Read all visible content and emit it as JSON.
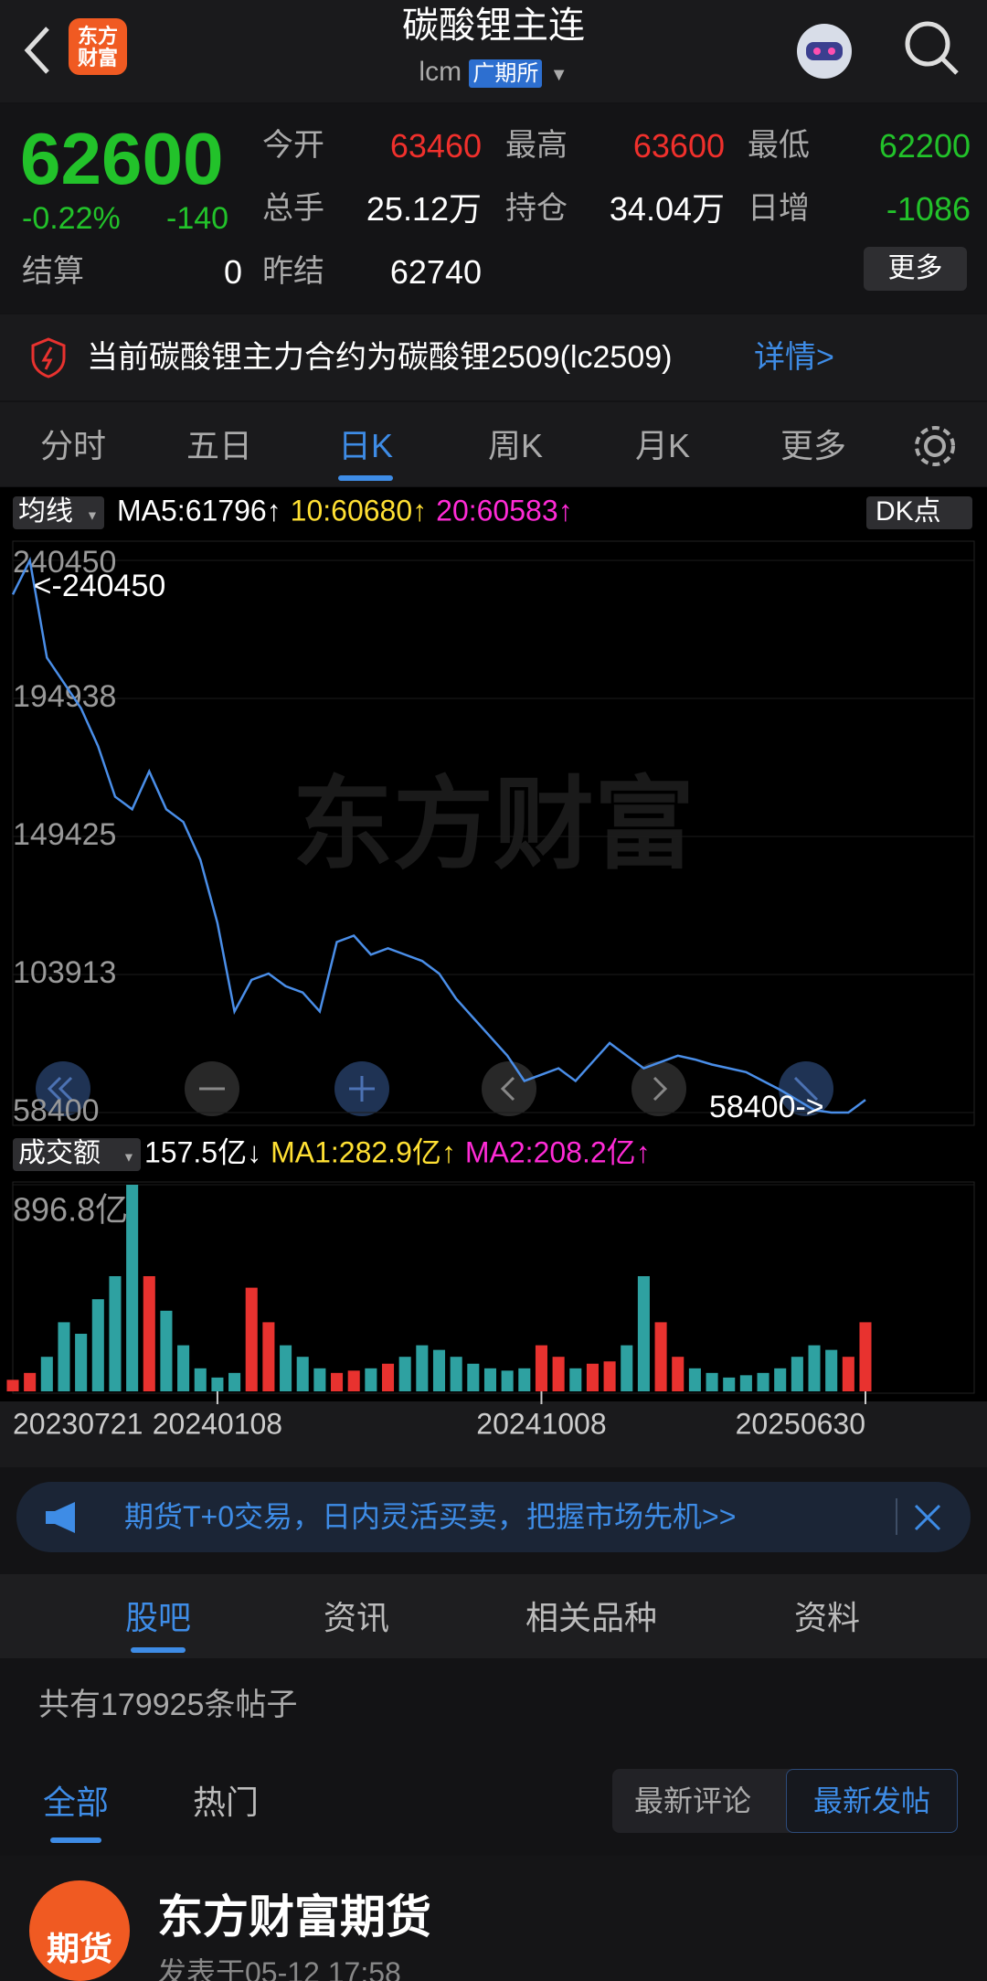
{
  "header": {
    "logo": "东方财富",
    "title": "碳酸锂主连",
    "code": "lcm",
    "exchange": "广期所"
  },
  "quote": {
    "price": "62600",
    "change_pct": "-0.22%",
    "change": "-140",
    "more": "更多",
    "fields": [
      {
        "label": "今开",
        "value": "63460",
        "color": "#f0302c"
      },
      {
        "label": "最高",
        "value": "63600",
        "color": "#f0302c"
      },
      {
        "label": "最低",
        "value": "62200",
        "color": "#22c22a"
      },
      {
        "label": "总手",
        "value": "25.12万",
        "color": "#ffffff"
      },
      {
        "label": "持仓",
        "value": "34.04万",
        "color": "#ffffff"
      },
      {
        "label": "日增",
        "value": "-1086",
        "color": "#22c22a"
      },
      {
        "label": "结算",
        "value": "0",
        "color": "#ffffff"
      },
      {
        "label": "昨结",
        "value": "62740",
        "color": "#ffffff"
      }
    ]
  },
  "notice": {
    "text": "当前碳酸锂主力合约为碳酸锂2509(lc2509)",
    "link": "详情>"
  },
  "chart_tabs": [
    "分时",
    "五日",
    "日K",
    "周K",
    "月K",
    "更多"
  ],
  "chart_data": [
    {
      "type": "line",
      "indicator": "均线",
      "button": "DK点",
      "watermark": "东方财富",
      "legend": [
        {
          "text": "MA5:61796↑",
          "color": "#ffffff"
        },
        {
          "text": "10:60680↑",
          "color": "#ffe033"
        },
        {
          "text": "20:60583↑",
          "color": "#ff2bd6"
        }
      ],
      "series": [
        {
          "color": "#4a8ee8",
          "values": [
            229200,
            240450,
            208370,
            200040,
            191700,
            179210,
            162540,
            158380,
            170880,
            158380,
            154210,
            141710,
            120880,
            91720,
            102140,
            104220,
            100050,
            97970,
            91720,
            114640,
            116720,
            110470,
            112550,
            110470,
            108390,
            104220,
            95890,
            89640,
            83390,
            77140,
            68810,
            70890,
            72980,
            68810,
            75060,
            81310,
            77140,
            72980,
            75060,
            77140,
            75890,
            74230,
            72980,
            71730,
            68810,
            65900,
            62560,
            59230,
            58400,
            58400,
            62600
          ]
        }
      ],
      "ylim": [
        58400,
        240450
      ],
      "yticks": [
        58400,
        103913,
        149425,
        194938,
        240450
      ],
      "grid": true,
      "annotations": [
        {
          "text": "<-240450"
        },
        {
          "text": "58400->"
        }
      ]
    },
    {
      "type": "bar",
      "indicator": "成交额",
      "legend": [
        {
          "text": "157.5亿↓",
          "color": "#ffffff"
        },
        {
          "text": "MA1:282.9亿↑",
          "color": "#ffe033"
        },
        {
          "text": "MA2:208.2亿↑",
          "color": "#ff2bd6"
        }
      ],
      "categories": [
        "20230721",
        null,
        null,
        null,
        null,
        null,
        null,
        null,
        null,
        null,
        null,
        null,
        "20240108",
        null,
        null,
        null,
        null,
        null,
        null,
        null,
        null,
        null,
        null,
        null,
        null,
        null,
        null,
        null,
        null,
        null,
        null,
        "20241008",
        null,
        null,
        null,
        null,
        null,
        null,
        null,
        null,
        null,
        null,
        null,
        null,
        null,
        null,
        null,
        null,
        null,
        null,
        "20250630"
      ],
      "values": [
        50,
        80,
        150,
        300,
        250,
        400,
        500,
        896.8,
        500,
        350,
        200,
        100,
        60,
        80,
        450,
        300,
        200,
        150,
        100,
        80,
        90,
        100,
        120,
        150,
        200,
        180,
        150,
        120,
        100,
        90,
        100,
        200,
        150,
        100,
        120,
        130,
        200,
        500,
        300,
        150,
        100,
        80,
        60,
        70,
        80,
        100,
        150,
        200,
        180,
        150,
        300
      ],
      "up_color": "#e8322f",
      "down_color": "#2ea1a1",
      "ylim": [
        0,
        896.8
      ],
      "yticks": [
        {
          "value": 896.8,
          "label": "896.8亿"
        }
      ]
    }
  ],
  "banner": {
    "text": "期货T+0交易，日内灵活买卖，把握市场先机>>"
  },
  "tabs": [
    "股吧",
    "资讯",
    "相关品种",
    "资料"
  ],
  "post_count": "共有179925条帖子",
  "filters": [
    "全部",
    "热门"
  ],
  "sort": [
    "最新评论",
    "最新发帖"
  ],
  "post": {
    "avatar": "期货",
    "author": "东方财富期货",
    "time": "发表于05-12 17:58"
  }
}
